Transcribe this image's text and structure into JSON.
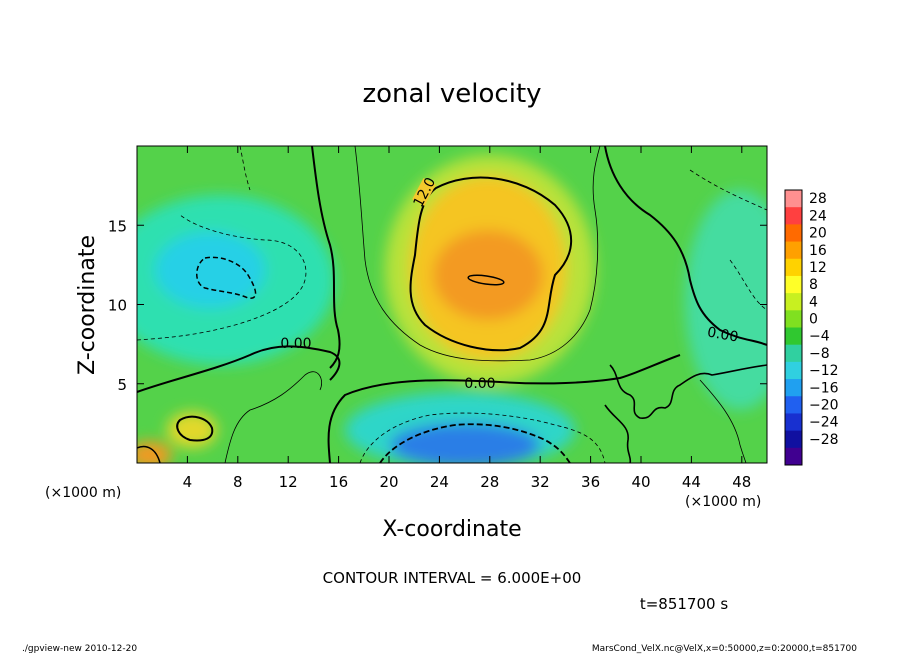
{
  "chart_data": {
    "type": "heatmap",
    "title": "zonal velocity",
    "xlabel": "X-coordinate",
    "ylabel": "Z-coordinate",
    "x_unit_label": "(×1000 m)",
    "y_unit_label": "(×1000 m)",
    "x_ticks": [
      4,
      8,
      12,
      16,
      20,
      24,
      28,
      32,
      36,
      40,
      44,
      48
    ],
    "y_ticks": [
      5,
      10,
      15
    ],
    "xlim": [
      0,
      50
    ],
    "ylim": [
      0,
      20
    ],
    "colorbar_levels": [
      28,
      24,
      20,
      16,
      12,
      8,
      4,
      0,
      -4,
      -8,
      -12,
      -16,
      -20,
      -24,
      -28
    ],
    "contour_labels": [
      "12.0",
      "0.00",
      "0.00",
      "0.00"
    ],
    "contour_interval_text": "CONTOUR INTERVAL = 6.000E+00",
    "time_text": "t=851700 s",
    "colors": {
      "positive_peak": "#f08a1e",
      "negative_peak": "#1e6ee0",
      "zero": "#3cc83c"
    }
  },
  "footer": {
    "left": "./gpview-new   2010-12-20",
    "right": "MarsCond_VelX.nc@VelX,x=0:50000,z=0:20000,t=851700"
  }
}
